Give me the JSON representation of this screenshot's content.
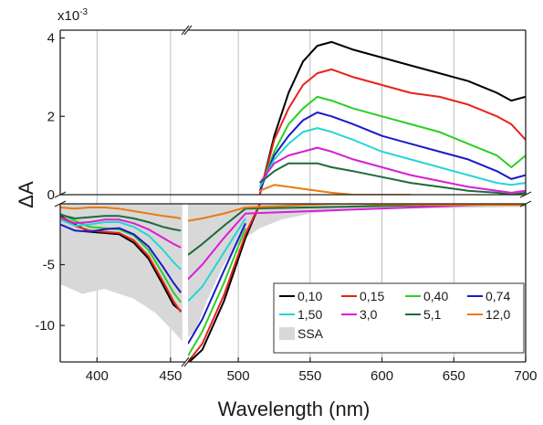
{
  "chart_data": {
    "type": "line",
    "xlabel": "Wavelength (nm)",
    "ylabel": "ΔA",
    "y_multiplier": "x10",
    "y_multiplier_exp": "-3",
    "x_segments": [
      [
        375,
        460
      ],
      [
        465,
        700
      ]
    ],
    "y_segments": [
      [
        -13,
        0
      ],
      [
        0,
        4.2
      ]
    ],
    "xlim": [
      375,
      700
    ],
    "ylim": [
      -13,
      4.2
    ],
    "x_ticks": [
      400,
      450,
      500,
      550,
      600,
      650,
      700
    ],
    "y_ticks": [
      4,
      2,
      0,
      -5,
      -10
    ],
    "y_tick_labels": [
      "4",
      "2",
      "0",
      "-5",
      "-10"
    ],
    "vertical_grid": [
      400,
      450,
      500,
      550,
      600,
      650,
      700
    ],
    "legend_position": "bottom-right",
    "colors": {
      "0,10": "#000000",
      "0,15": "#e8221d",
      "0,40": "#2ccf24",
      "0,74": "#1a1ac8",
      "1,50": "#25d6d6",
      "3,0": "#d61fd6",
      "5,1": "#1c6b3a",
      "12,0": "#ea7a12",
      "SSA": "#d8d8d8"
    },
    "ssa": {
      "name": "SSA",
      "points": [
        [
          375,
          -6.6
        ],
        [
          390,
          -7.4
        ],
        [
          405,
          -7.0
        ],
        [
          425,
          -7.8
        ],
        [
          440,
          -9.0
        ],
        [
          452,
          -10.5
        ],
        [
          458,
          -11.3
        ],
        [
          470,
          -10.5
        ],
        [
          478,
          -8.0
        ],
        [
          490,
          -5.0
        ],
        [
          500,
          -3.2
        ],
        [
          515,
          -2.0
        ],
        [
          530,
          -1.3
        ],
        [
          550,
          -0.8
        ],
        [
          575,
          -0.5
        ],
        [
          600,
          -0.4
        ],
        [
          650,
          -0.35
        ],
        [
          700,
          -0.25
        ]
      ]
    },
    "series": [
      {
        "name": "0,10",
        "left": [
          [
            375,
            -1.0
          ],
          [
            385,
            -1.7
          ],
          [
            395,
            -2.3
          ],
          [
            405,
            -2.4
          ],
          [
            415,
            -2.5
          ],
          [
            425,
            -3.2
          ],
          [
            435,
            -4.5
          ],
          [
            445,
            -6.7
          ],
          [
            452,
            -8.3
          ],
          [
            457,
            -8.8
          ]
        ],
        "right": [
          [
            465,
            -13.1
          ],
          [
            475,
            -12.0
          ],
          [
            490,
            -8.0
          ],
          [
            505,
            -2.8
          ],
          [
            515,
            0.0
          ],
          [
            525,
            1.5
          ],
          [
            535,
            2.6
          ],
          [
            545,
            3.4
          ],
          [
            555,
            3.8
          ],
          [
            565,
            3.9
          ],
          [
            580,
            3.7
          ],
          [
            600,
            3.5
          ],
          [
            620,
            3.3
          ],
          [
            640,
            3.1
          ],
          [
            660,
            2.9
          ],
          [
            680,
            2.6
          ],
          [
            690,
            2.4
          ],
          [
            700,
            2.5
          ]
        ]
      },
      {
        "name": "0,15",
        "left": [
          [
            375,
            -1.1
          ],
          [
            385,
            -1.8
          ],
          [
            395,
            -2.2
          ],
          [
            405,
            -2.3
          ],
          [
            415,
            -2.4
          ],
          [
            425,
            -3.0
          ],
          [
            435,
            -4.3
          ],
          [
            445,
            -6.4
          ],
          [
            452,
            -8.0
          ],
          [
            457,
            -8.9
          ]
        ],
        "right": [
          [
            465,
            -13.0
          ],
          [
            475,
            -11.5
          ],
          [
            490,
            -7.5
          ],
          [
            505,
            -2.5
          ],
          [
            515,
            0.0
          ],
          [
            525,
            1.4
          ],
          [
            535,
            2.2
          ],
          [
            545,
            2.8
          ],
          [
            555,
            3.1
          ],
          [
            565,
            3.2
          ],
          [
            580,
            3.0
          ],
          [
            600,
            2.8
          ],
          [
            620,
            2.6
          ],
          [
            640,
            2.5
          ],
          [
            660,
            2.3
          ],
          [
            680,
            2.0
          ],
          [
            690,
            1.8
          ],
          [
            700,
            1.4
          ]
        ]
      },
      {
        "name": "0,40",
        "left": [
          [
            375,
            -0.8
          ],
          [
            385,
            -1.4
          ],
          [
            395,
            -1.9
          ],
          [
            405,
            -2.0
          ],
          [
            415,
            -2.1
          ],
          [
            425,
            -2.6
          ],
          [
            435,
            -3.8
          ],
          [
            445,
            -5.8
          ],
          [
            452,
            -7.3
          ],
          [
            457,
            -8.1
          ]
        ],
        "right": [
          [
            465,
            -12.5
          ],
          [
            475,
            -10.5
          ],
          [
            490,
            -6.5
          ],
          [
            505,
            -2.0
          ],
          [
            515,
            0.1
          ],
          [
            525,
            1.1
          ],
          [
            535,
            1.8
          ],
          [
            545,
            2.2
          ],
          [
            555,
            2.5
          ],
          [
            565,
            2.4
          ],
          [
            580,
            2.2
          ],
          [
            600,
            2.0
          ],
          [
            620,
            1.8
          ],
          [
            640,
            1.6
          ],
          [
            660,
            1.3
          ],
          [
            680,
            1.0
          ],
          [
            690,
            0.7
          ],
          [
            700,
            1.0
          ]
        ]
      },
      {
        "name": "0,74",
        "left": [
          [
            375,
            -1.7
          ],
          [
            385,
            -2.2
          ],
          [
            395,
            -2.3
          ],
          [
            405,
            -2.1
          ],
          [
            415,
            -2.0
          ],
          [
            425,
            -2.5
          ],
          [
            435,
            -3.5
          ],
          [
            445,
            -5.2
          ],
          [
            452,
            -6.5
          ],
          [
            457,
            -7.3
          ]
        ],
        "right": [
          [
            465,
            -11.5
          ],
          [
            475,
            -9.5
          ],
          [
            490,
            -5.5
          ],
          [
            505,
            -1.6
          ],
          [
            515,
            0.1
          ],
          [
            525,
            1.0
          ],
          [
            535,
            1.5
          ],
          [
            545,
            1.9
          ],
          [
            555,
            2.1
          ],
          [
            565,
            2.0
          ],
          [
            580,
            1.8
          ],
          [
            600,
            1.5
          ],
          [
            620,
            1.3
          ],
          [
            640,
            1.1
          ],
          [
            660,
            0.9
          ],
          [
            680,
            0.6
          ],
          [
            690,
            0.4
          ],
          [
            700,
            0.5
          ]
        ]
      },
      {
        "name": "1,50",
        "left": [
          [
            375,
            -1.3
          ],
          [
            385,
            -1.8
          ],
          [
            395,
            -1.7
          ],
          [
            405,
            -1.5
          ],
          [
            415,
            -1.5
          ],
          [
            425,
            -1.9
          ],
          [
            435,
            -2.6
          ],
          [
            445,
            -3.8
          ],
          [
            452,
            -4.8
          ],
          [
            457,
            -5.4
          ]
        ],
        "right": [
          [
            465,
            -8.0
          ],
          [
            475,
            -6.8
          ],
          [
            490,
            -4.0
          ],
          [
            505,
            -1.2
          ],
          [
            515,
            0.2
          ],
          [
            525,
            0.9
          ],
          [
            535,
            1.3
          ],
          [
            545,
            1.6
          ],
          [
            555,
            1.7
          ],
          [
            565,
            1.6
          ],
          [
            580,
            1.4
          ],
          [
            600,
            1.1
          ],
          [
            620,
            0.9
          ],
          [
            640,
            0.7
          ],
          [
            660,
            0.5
          ],
          [
            680,
            0.3
          ],
          [
            690,
            0.25
          ],
          [
            700,
            0.3
          ]
        ]
      },
      {
        "name": "3,0",
        "left": [
          [
            375,
            -1.1
          ],
          [
            385,
            -1.6
          ],
          [
            395,
            -1.5
          ],
          [
            405,
            -1.3
          ],
          [
            415,
            -1.3
          ],
          [
            425,
            -1.6
          ],
          [
            435,
            -2.1
          ],
          [
            445,
            -2.8
          ],
          [
            452,
            -3.3
          ],
          [
            457,
            -3.6
          ]
        ],
        "right": [
          [
            465,
            -6.2
          ],
          [
            475,
            -5.0
          ],
          [
            490,
            -2.8
          ],
          [
            505,
            -0.8
          ],
          [
            515,
            0.3
          ],
          [
            525,
            0.8
          ],
          [
            535,
            1.0
          ],
          [
            545,
            1.1
          ],
          [
            555,
            1.2
          ],
          [
            565,
            1.1
          ],
          [
            580,
            0.9
          ],
          [
            600,
            0.7
          ],
          [
            620,
            0.5
          ],
          [
            640,
            0.35
          ],
          [
            660,
            0.2
          ],
          [
            680,
            0.1
          ],
          [
            690,
            0.05
          ],
          [
            700,
            0.1
          ]
        ]
      },
      {
        "name": "5,1",
        "left": [
          [
            375,
            -0.9
          ],
          [
            385,
            -1.2
          ],
          [
            395,
            -1.1
          ],
          [
            405,
            -1.0
          ],
          [
            415,
            -1.0
          ],
          [
            425,
            -1.2
          ],
          [
            435,
            -1.5
          ],
          [
            445,
            -1.9
          ],
          [
            452,
            -2.1
          ],
          [
            457,
            -2.2
          ]
        ],
        "right": [
          [
            465,
            -4.2
          ],
          [
            475,
            -3.3
          ],
          [
            490,
            -1.8
          ],
          [
            505,
            -0.4
          ],
          [
            515,
            0.3
          ],
          [
            525,
            0.6
          ],
          [
            535,
            0.8
          ],
          [
            545,
            0.8
          ],
          [
            555,
            0.8
          ],
          [
            565,
            0.7
          ],
          [
            580,
            0.6
          ],
          [
            600,
            0.45
          ],
          [
            620,
            0.3
          ],
          [
            640,
            0.2
          ],
          [
            660,
            0.1
          ],
          [
            680,
            0.05
          ],
          [
            690,
            0.0
          ],
          [
            700,
            0.05
          ]
        ]
      },
      {
        "name": "12,0",
        "left": [
          [
            375,
            -0.3
          ],
          [
            385,
            -0.4
          ],
          [
            395,
            -0.3
          ],
          [
            405,
            -0.3
          ],
          [
            415,
            -0.4
          ],
          [
            425,
            -0.6
          ],
          [
            435,
            -0.8
          ],
          [
            445,
            -1.0
          ],
          [
            452,
            -1.1
          ],
          [
            457,
            -1.2
          ]
        ],
        "right": [
          [
            465,
            -1.4
          ],
          [
            475,
            -1.2
          ],
          [
            490,
            -0.8
          ],
          [
            505,
            -0.3
          ],
          [
            515,
            0.1
          ],
          [
            525,
            0.25
          ],
          [
            535,
            0.2
          ],
          [
            545,
            0.15
          ],
          [
            555,
            0.1
          ],
          [
            565,
            0.05
          ],
          [
            580,
            0.0
          ],
          [
            600,
            -0.05
          ],
          [
            620,
            -0.05
          ],
          [
            640,
            -0.1
          ],
          [
            660,
            -0.1
          ],
          [
            680,
            -0.1
          ],
          [
            690,
            -0.1
          ],
          [
            700,
            -0.1
          ]
        ]
      }
    ]
  }
}
